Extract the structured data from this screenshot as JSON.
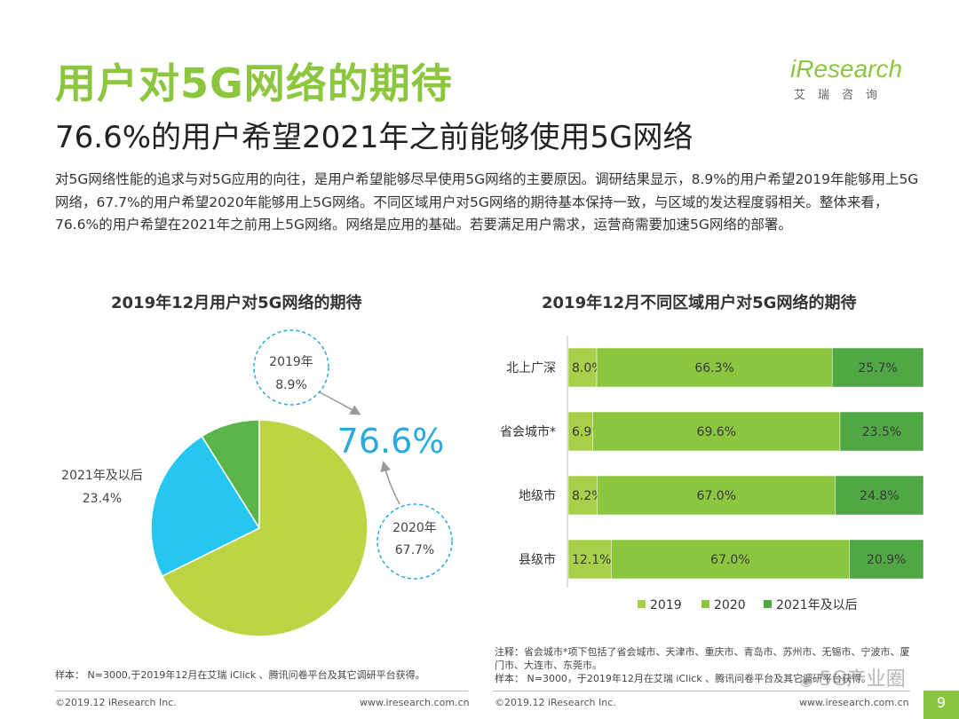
{
  "header": {
    "title": "用户对5G网络的期待",
    "subtitle": "76.6%的用户希望2021年之前能够使用5G网络",
    "logo_text": "iResearch",
    "logo_sub": "艾瑞咨询"
  },
  "paragraph": "对5G网络性能的追求与对5G应用的向往，是用户希望能够尽早使用5G网络的主要原因。调研结果显示，8.9%的用户希望2019年能够用上5G网络，67.7%的用户希望2020年能够用上5G网络。不同区域用户对5G网络的期待基本保持一致，与区域的发达程度弱相关。整体来看，76.6%的用户希望在2021年之前用上5G网络。网络是应用的基础。若要满足用户需求，运营商需要加速5G网络的部署。",
  "colors": {
    "c2019": "#a8cf4a",
    "c2020": "#8cc63f",
    "c2021": "#4fa843",
    "pie2019": "#5ab449",
    "pie2020": "#bcd544",
    "pie2021": "#25c6ef",
    "accent": "#27aae1"
  },
  "chart_data": [
    {
      "type": "pie",
      "title": "2019年12月用户对5G网络的期待",
      "highlight": "76.6%",
      "slices": [
        {
          "label": "2019年",
          "value": 8.9,
          "text": "8.9%"
        },
        {
          "label": "2020年",
          "value": 67.7,
          "text": "67.7%"
        },
        {
          "label": "2021年及以后",
          "value": 23.4,
          "text": "23.4%"
        }
      ]
    },
    {
      "type": "bar",
      "orientation": "horizontal",
      "stacked": true,
      "title": "2019年12月不同区域用户对5G网络的期待",
      "categories": [
        "北上广深",
        "省会城市*",
        "地级市",
        "县级市"
      ],
      "series": [
        {
          "name": "2019",
          "values": [
            8.0,
            6.9,
            8.2,
            12.1
          ],
          "labels": [
            "8.0%",
            "6.9%",
            "8.2%",
            "12.1%"
          ]
        },
        {
          "name": "2020",
          "values": [
            66.3,
            69.6,
            67.0,
            67.0
          ],
          "labels": [
            "66.3%",
            "69.6%",
            "67.0%",
            "67.0%"
          ]
        },
        {
          "name": "2021年及以后",
          "values": [
            25.7,
            23.5,
            24.8,
            20.9
          ],
          "labels": [
            "25.7%",
            "23.5%",
            "24.8%",
            "20.9%"
          ]
        }
      ],
      "legend_position": "bottom"
    }
  ],
  "notes": {
    "left_sample": "样本： N=3000,于2019年12月在艾瑞 iClick 、腾讯问卷平台及其它调研平台获得。",
    "right_note": "注释：省会城市*项下包括了省会城市、天津市、重庆市、青岛市、苏州市、无锡市、宁波市、厦门市、大连市、东莞市。",
    "right_sample": "样本： N=3000，于2019年12月在艾瑞 iClick 、腾讯问卷平台及其它调研平台获得。"
  },
  "footer": {
    "copyright_left": "©2019.12 iResearch Inc.",
    "url_left": "www.iresearch.com.cn",
    "copyright_right": "©2019.12 iResearch Inc.",
    "url_right": "www.iresearch.com.cn",
    "page_number": "9",
    "watermark": "5G产业圈"
  }
}
